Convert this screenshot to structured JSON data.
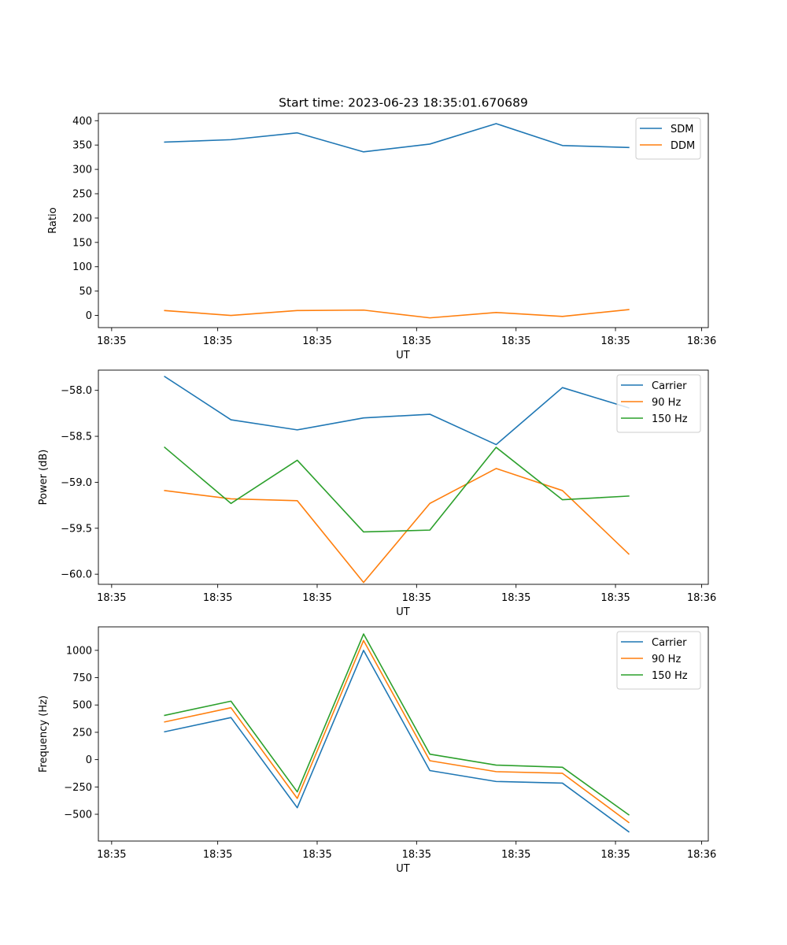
{
  "title": "Start time: 2023-06-23 18:35:01.670689",
  "colors": {
    "blue": "#1f77b4",
    "orange": "#ff7f0e",
    "green": "#2ca02c"
  },
  "chart_data": [
    {
      "type": "line",
      "title": "Start time: 2023-06-23 18:35:01.670689",
      "xlabel": "UT",
      "ylabel": "Ratio",
      "x_index": [
        1,
        2,
        3,
        4,
        5,
        6,
        7,
        8
      ],
      "xlim": [
        0,
        9.2
      ],
      "xticks": [
        0.2,
        1.8,
        3.3,
        4.8,
        6.3,
        7.8,
        9.1
      ],
      "xtick_labels": [
        "18:35",
        "18:35",
        "18:35",
        "18:35",
        "18:35",
        "18:35",
        "18:36"
      ],
      "ylim": [
        -25,
        415
      ],
      "yticks": [
        0,
        50,
        100,
        150,
        200,
        250,
        300,
        350,
        400
      ],
      "ytick_labels": [
        "0",
        "50",
        "100",
        "150",
        "200",
        "250",
        "300",
        "350",
        "400"
      ],
      "grid": false,
      "legend": "top-right",
      "series": [
        {
          "name": "SDM",
          "color": "#1f77b4",
          "values": [
            356,
            361,
            375,
            336,
            352,
            394,
            349,
            345
          ]
        },
        {
          "name": "DDM",
          "color": "#ff7f0e",
          "values": [
            10,
            0,
            10,
            11,
            -5,
            6,
            -2,
            12
          ]
        }
      ]
    },
    {
      "type": "line",
      "title": "",
      "xlabel": "UT",
      "ylabel": "Power (dB)",
      "x_index": [
        1,
        2,
        3,
        4,
        5,
        6,
        7,
        8
      ],
      "xlim": [
        0,
        9.2
      ],
      "xticks": [
        0.2,
        1.8,
        3.3,
        4.8,
        6.3,
        7.8,
        9.1
      ],
      "xtick_labels": [
        "18:35",
        "18:35",
        "18:35",
        "18:35",
        "18:35",
        "18:35",
        "18:36"
      ],
      "ylim": [
        -60.11,
        -57.78
      ],
      "yticks": [
        -60.0,
        -59.5,
        -59.0,
        -58.5,
        -58.0
      ],
      "ytick_labels": [
        "−60.0",
        "−59.5",
        "−59.0",
        "−58.5",
        "−58.0"
      ],
      "grid": false,
      "legend": "top-right",
      "series": [
        {
          "name": "Carrier",
          "color": "#1f77b4",
          "values": [
            -57.85,
            -58.32,
            -58.43,
            -58.3,
            -58.26,
            -58.59,
            -57.97,
            -58.19
          ]
        },
        {
          "name": "90 Hz",
          "color": "#ff7f0e",
          "values": [
            -59.09,
            -59.18,
            -59.2,
            -60.09,
            -59.23,
            -58.85,
            -59.09,
            -59.78
          ]
        },
        {
          "name": "150 Hz",
          "color": "#2ca02c",
          "values": [
            -58.62,
            -59.23,
            -58.76,
            -59.54,
            -59.52,
            -58.62,
            -59.19,
            -59.15
          ]
        }
      ]
    },
    {
      "type": "line",
      "title": "",
      "xlabel": "UT",
      "ylabel": "Frequency (Hz)",
      "x_index": [
        1,
        2,
        3,
        4,
        5,
        6,
        7,
        8
      ],
      "xlim": [
        0,
        9.2
      ],
      "xticks": [
        0.2,
        1.8,
        3.3,
        4.8,
        6.3,
        7.8,
        9.1
      ],
      "xtick_labels": [
        "18:35",
        "18:35",
        "18:35",
        "18:35",
        "18:35",
        "18:35",
        "18:36"
      ],
      "ylim": [
        -745,
        1215
      ],
      "yticks": [
        -500,
        -250,
        0,
        250,
        500,
        750,
        1000
      ],
      "ytick_labels": [
        "−500",
        "−250",
        "0",
        "250",
        "500",
        "750",
        "1000"
      ],
      "grid": false,
      "legend": "top-right",
      "series": [
        {
          "name": "Carrier",
          "color": "#1f77b4",
          "values": [
            255,
            385,
            -440,
            1000,
            -100,
            -200,
            -215,
            -660
          ]
        },
        {
          "name": "90 Hz",
          "color": "#ff7f0e",
          "values": [
            345,
            475,
            -355,
            1090,
            -10,
            -110,
            -125,
            -575
          ]
        },
        {
          "name": "150 Hz",
          "color": "#2ca02c",
          "values": [
            405,
            535,
            -295,
            1150,
            50,
            -50,
            -70,
            -505
          ]
        }
      ]
    }
  ]
}
